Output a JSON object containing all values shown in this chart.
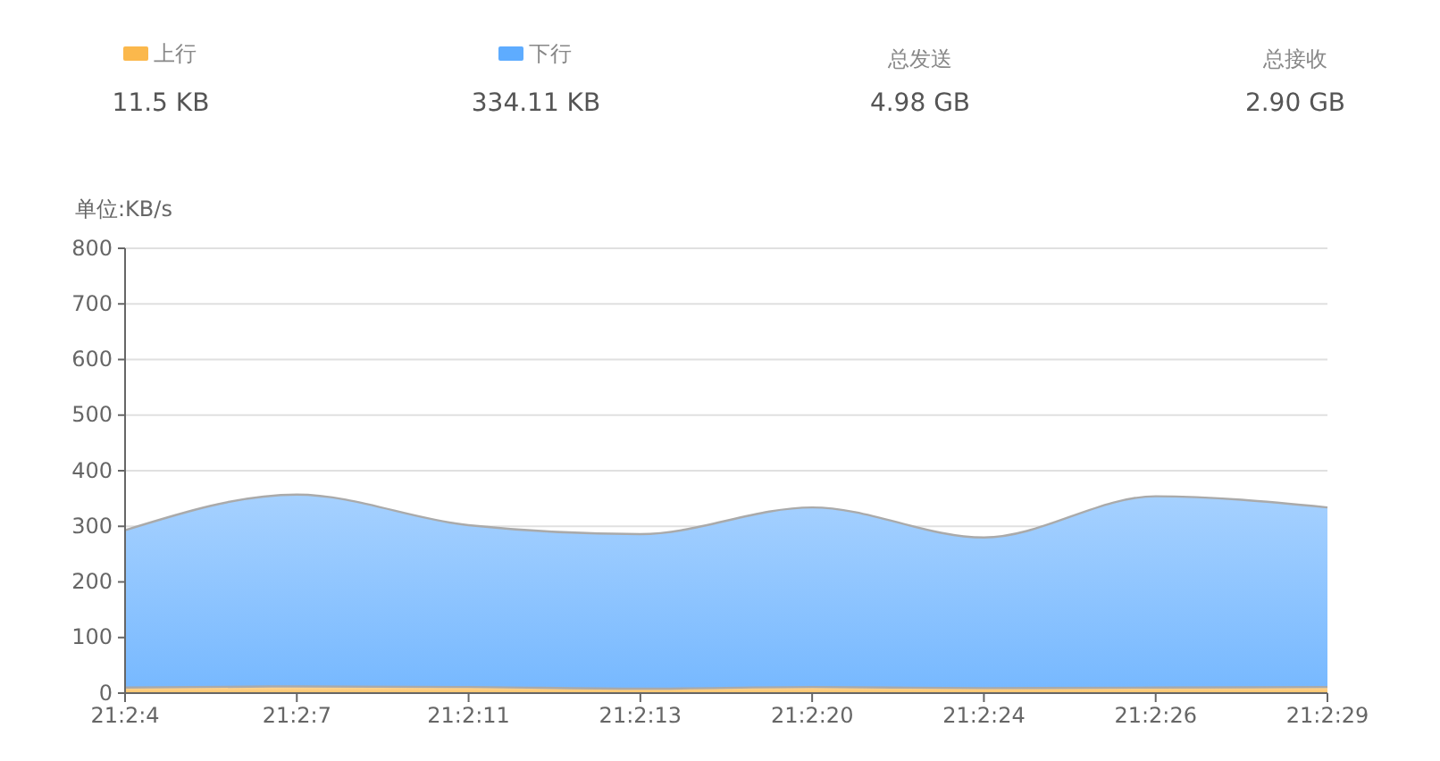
{
  "chart_data": {
    "type": "area",
    "ylabel": "单位:KB/s",
    "categories": [
      "21:2:4",
      "21:2:7",
      "21:2:11",
      "21:2:13",
      "21:2:20",
      "21:2:24",
      "21:2:26",
      "21:2:29"
    ],
    "series": [
      {
        "name": "上行",
        "color": "#fbb84c",
        "values": [
          10,
          12,
          11,
          8,
          11,
          9,
          10,
          11
        ]
      },
      {
        "name": "下行",
        "color": "#5eacff",
        "values": [
          293,
          357,
          302,
          286,
          334,
          280,
          354,
          334
        ]
      }
    ],
    "ylim": [
      0,
      800
    ],
    "yticks": [
      0,
      100,
      200,
      300,
      400,
      500,
      600,
      700,
      800
    ],
    "grid": "y",
    "legend": "top left",
    "annotations": [
      "11.5 KB",
      "334.11 KB",
      "总发送",
      "4.98 GB",
      "总接收",
      "2.90 GB"
    ]
  }
}
